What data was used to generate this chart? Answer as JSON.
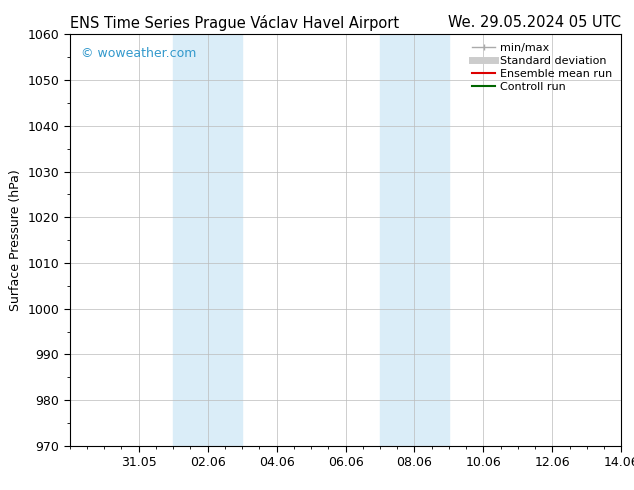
{
  "title_left": "ENS Time Series Prague Václav Havel Airport",
  "title_right": "We. 29.05.2024 05 UTC",
  "ylabel": "Surface Pressure (hPa)",
  "ylim": [
    970,
    1060
  ],
  "yticks": [
    970,
    980,
    990,
    1000,
    1010,
    1020,
    1030,
    1040,
    1050,
    1060
  ],
  "xlim": [
    0,
    16
  ],
  "xtick_labels": [
    "31.05",
    "02.06",
    "04.06",
    "06.06",
    "08.06",
    "10.06",
    "12.06",
    "14.06"
  ],
  "xtick_positions": [
    2,
    4,
    6,
    8,
    10,
    12,
    14,
    16
  ],
  "shaded_bands": [
    {
      "xstart": 3,
      "xend": 5
    },
    {
      "xstart": 9,
      "xend": 11
    }
  ],
  "shaded_color": "#daedf8",
  "watermark_text": "© woweather.com",
  "watermark_color": "#3399cc",
  "legend_entries": [
    {
      "label": "min/max",
      "color": "#aaaaaa",
      "linewidth": 1.0
    },
    {
      "label": "Standard deviation",
      "color": "#cccccc",
      "linewidth": 5
    },
    {
      "label": "Ensemble mean run",
      "color": "#dd0000",
      "linewidth": 1.5
    },
    {
      "label": "Controll run",
      "color": "#006600",
      "linewidth": 1.5
    }
  ],
  "background_color": "#ffffff",
  "spine_color": "#000000",
  "tick_color": "#000000",
  "title_fontsize": 10.5,
  "ylabel_fontsize": 9,
  "tick_fontsize": 9,
  "legend_fontsize": 8
}
